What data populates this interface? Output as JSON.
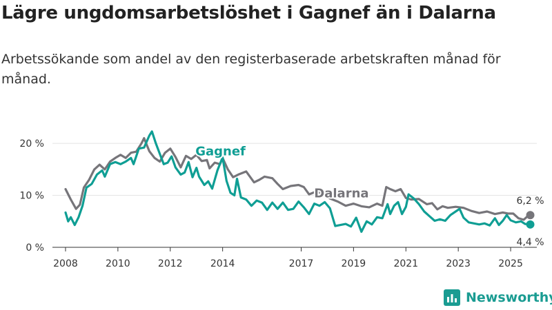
{
  "header": {
    "title": "Lägre ungdomsarbetslöshet i Gagnef än i Dalarna",
    "subtitle": "Arbetssökande som andel av den registerbaserade arbetskraften månad för månad."
  },
  "brand": {
    "name": "Newsworthy",
    "icon": "newsworthy-logo-icon",
    "color": "#1a9c92"
  },
  "chart_data": {
    "type": "line",
    "ylim": [
      0,
      24
    ],
    "xlim": [
      2007.5,
      2026.0
    ],
    "yticks": [
      0,
      10,
      20
    ],
    "ytick_labels": [
      "0 %",
      "10 %",
      "20 %"
    ],
    "xticks": [
      2008,
      2010,
      2012,
      2014,
      2017,
      2019,
      2021,
      2023,
      2025
    ],
    "xtick_labels": [
      "2008",
      "2010",
      "2012",
      "2014",
      "2017",
      "2019",
      "2021",
      "2023",
      "2025"
    ],
    "series": [
      {
        "name": "Dalarna",
        "label": "Dalarna",
        "color": "#76757a",
        "end_label": "6,2 %",
        "end_value": 6.2,
        "points": [
          [
            2008.0,
            11.2
          ],
          [
            2008.2,
            9.2
          ],
          [
            2008.4,
            7.4
          ],
          [
            2008.55,
            8.2
          ],
          [
            2008.7,
            11.5
          ],
          [
            2008.9,
            13.0
          ],
          [
            2009.1,
            15.0
          ],
          [
            2009.3,
            15.9
          ],
          [
            2009.5,
            15.0
          ],
          [
            2009.7,
            16.5
          ],
          [
            2009.9,
            17.2
          ],
          [
            2010.1,
            17.8
          ],
          [
            2010.3,
            17.2
          ],
          [
            2010.5,
            18.2
          ],
          [
            2010.7,
            18.4
          ],
          [
            2010.9,
            20.0
          ],
          [
            2011.0,
            21.0
          ],
          [
            2011.2,
            18.5
          ],
          [
            2011.4,
            17.2
          ],
          [
            2011.6,
            16.5
          ],
          [
            2011.8,
            18.2
          ],
          [
            2012.0,
            19.0
          ],
          [
            2012.2,
            17.4
          ],
          [
            2012.4,
            15.4
          ],
          [
            2012.6,
            17.6
          ],
          [
            2012.8,
            17.0
          ],
          [
            2013.0,
            17.8
          ],
          [
            2013.2,
            16.6
          ],
          [
            2013.4,
            16.8
          ],
          [
            2013.5,
            15.2
          ],
          [
            2013.7,
            16.3
          ],
          [
            2013.9,
            16.0
          ],
          [
            2014.0,
            17.2
          ],
          [
            2014.2,
            15.0
          ],
          [
            2014.4,
            13.5
          ],
          [
            2014.6,
            14.0
          ],
          [
            2014.9,
            14.6
          ],
          [
            2015.2,
            12.5
          ],
          [
            2015.4,
            13.0
          ],
          [
            2015.6,
            13.6
          ],
          [
            2015.9,
            13.3
          ],
          [
            2016.1,
            12.2
          ],
          [
            2016.3,
            11.2
          ],
          [
            2016.6,
            11.8
          ],
          [
            2016.9,
            12.0
          ],
          [
            2017.1,
            11.6
          ],
          [
            2017.3,
            10.2
          ],
          [
            2017.6,
            10.8
          ],
          [
            2017.9,
            10.0
          ],
          [
            2018.1,
            9.4
          ],
          [
            2018.4,
            8.8
          ],
          [
            2018.7,
            8.0
          ],
          [
            2019.0,
            8.4
          ],
          [
            2019.3,
            7.9
          ],
          [
            2019.6,
            7.7
          ],
          [
            2019.9,
            8.4
          ],
          [
            2020.1,
            8.0
          ],
          [
            2020.25,
            11.6
          ],
          [
            2020.4,
            11.2
          ],
          [
            2020.6,
            10.8
          ],
          [
            2020.8,
            11.2
          ],
          [
            2021.0,
            9.5
          ],
          [
            2021.2,
            9.2
          ],
          [
            2021.5,
            9.3
          ],
          [
            2021.8,
            8.3
          ],
          [
            2022.0,
            8.5
          ],
          [
            2022.2,
            7.3
          ],
          [
            2022.4,
            7.9
          ],
          [
            2022.6,
            7.6
          ],
          [
            2022.9,
            7.8
          ],
          [
            2023.2,
            7.6
          ],
          [
            2023.5,
            7.0
          ],
          [
            2023.8,
            6.6
          ],
          [
            2024.1,
            6.9
          ],
          [
            2024.4,
            6.4
          ],
          [
            2024.7,
            6.7
          ],
          [
            2024.9,
            6.5
          ],
          [
            2025.1,
            6.5
          ],
          [
            2025.3,
            5.6
          ],
          [
            2025.5,
            5.3
          ],
          [
            2025.65,
            6.0
          ],
          [
            2025.75,
            6.2
          ]
        ]
      },
      {
        "name": "Gagnef",
        "label": "Gagnef",
        "color": "#0f9e94",
        "end_label": "4,4 %",
        "end_value": 4.4,
        "points": [
          [
            2008.0,
            6.7
          ],
          [
            2008.1,
            5.0
          ],
          [
            2008.2,
            5.8
          ],
          [
            2008.35,
            4.3
          ],
          [
            2008.5,
            5.8
          ],
          [
            2008.65,
            8.0
          ],
          [
            2008.8,
            11.5
          ],
          [
            2009.0,
            12.2
          ],
          [
            2009.2,
            14.0
          ],
          [
            2009.4,
            14.8
          ],
          [
            2009.5,
            13.6
          ],
          [
            2009.7,
            16.0
          ],
          [
            2009.9,
            16.4
          ],
          [
            2010.1,
            16.0
          ],
          [
            2010.3,
            16.5
          ],
          [
            2010.5,
            17.2
          ],
          [
            2010.6,
            16.0
          ],
          [
            2010.8,
            19.0
          ],
          [
            2011.0,
            19.2
          ],
          [
            2011.2,
            21.5
          ],
          [
            2011.3,
            22.3
          ],
          [
            2011.45,
            20.0
          ],
          [
            2011.6,
            18.0
          ],
          [
            2011.75,
            16.0
          ],
          [
            2011.9,
            16.3
          ],
          [
            2012.05,
            17.5
          ],
          [
            2012.2,
            15.4
          ],
          [
            2012.4,
            14.0
          ],
          [
            2012.55,
            14.4
          ],
          [
            2012.7,
            16.4
          ],
          [
            2012.85,
            13.5
          ],
          [
            2013.0,
            15.3
          ],
          [
            2013.1,
            13.6
          ],
          [
            2013.3,
            12.0
          ],
          [
            2013.45,
            12.7
          ],
          [
            2013.6,
            11.3
          ],
          [
            2013.8,
            14.8
          ],
          [
            2014.0,
            17.3
          ],
          [
            2014.15,
            12.8
          ],
          [
            2014.3,
            10.5
          ],
          [
            2014.45,
            10.0
          ],
          [
            2014.55,
            13.2
          ],
          [
            2014.7,
            9.6
          ],
          [
            2014.9,
            9.2
          ],
          [
            2015.1,
            8.0
          ],
          [
            2015.3,
            9.0
          ],
          [
            2015.5,
            8.6
          ],
          [
            2015.7,
            7.2
          ],
          [
            2015.9,
            8.6
          ],
          [
            2016.1,
            7.4
          ],
          [
            2016.3,
            8.6
          ],
          [
            2016.5,
            7.2
          ],
          [
            2016.7,
            7.4
          ],
          [
            2016.9,
            8.8
          ],
          [
            2017.1,
            7.7
          ],
          [
            2017.3,
            6.4
          ],
          [
            2017.5,
            8.4
          ],
          [
            2017.7,
            8.0
          ],
          [
            2017.9,
            8.7
          ],
          [
            2018.1,
            7.5
          ],
          [
            2018.3,
            4.1
          ],
          [
            2018.5,
            4.3
          ],
          [
            2018.7,
            4.5
          ],
          [
            2018.9,
            4.0
          ],
          [
            2019.1,
            5.7
          ],
          [
            2019.3,
            3.0
          ],
          [
            2019.5,
            5.0
          ],
          [
            2019.7,
            4.4
          ],
          [
            2019.9,
            5.8
          ],
          [
            2020.1,
            5.6
          ],
          [
            2020.3,
            8.3
          ],
          [
            2020.4,
            6.4
          ],
          [
            2020.55,
            8.0
          ],
          [
            2020.7,
            8.7
          ],
          [
            2020.85,
            6.4
          ],
          [
            2021.0,
            7.8
          ],
          [
            2021.1,
            10.2
          ],
          [
            2021.3,
            9.4
          ],
          [
            2021.5,
            8.3
          ],
          [
            2021.7,
            6.9
          ],
          [
            2021.9,
            6.0
          ],
          [
            2022.1,
            5.1
          ],
          [
            2022.3,
            5.4
          ],
          [
            2022.5,
            5.1
          ],
          [
            2022.7,
            6.2
          ],
          [
            2022.9,
            6.9
          ],
          [
            2023.05,
            7.4
          ],
          [
            2023.2,
            5.7
          ],
          [
            2023.4,
            4.8
          ],
          [
            2023.6,
            4.6
          ],
          [
            2023.8,
            4.4
          ],
          [
            2024.0,
            4.6
          ],
          [
            2024.2,
            4.2
          ],
          [
            2024.4,
            5.6
          ],
          [
            2024.55,
            4.3
          ],
          [
            2024.7,
            5.1
          ],
          [
            2024.85,
            6.2
          ],
          [
            2025.0,
            5.2
          ],
          [
            2025.2,
            4.8
          ],
          [
            2025.4,
            5.0
          ],
          [
            2025.55,
            4.5
          ],
          [
            2025.75,
            4.4
          ]
        ]
      }
    ]
  }
}
